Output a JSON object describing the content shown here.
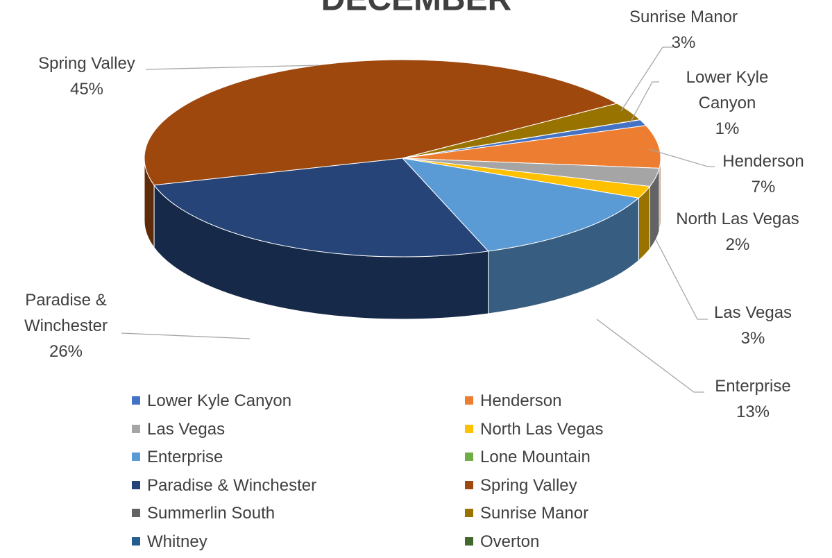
{
  "chart_data": {
    "type": "pie",
    "title": "DECEMBER",
    "categories": [
      "Lower Kyle Canyon",
      "Henderson",
      "Las Vegas",
      "North Las Vegas",
      "Enterprise",
      "Lone Mountain",
      "Paradise & Winchester",
      "Spring Valley",
      "Summerlin South",
      "Sunrise Manor",
      "Whitney",
      "Overton"
    ],
    "values": [
      1,
      7,
      3,
      2,
      13,
      0,
      26,
      45,
      0,
      3,
      0,
      0
    ],
    "value_labels": [
      "1%",
      "7%",
      "3%",
      "2%",
      "13%",
      null,
      "26%",
      "45%",
      null,
      "3%",
      null,
      null
    ],
    "colors": [
      "#4472c4",
      "#ed7d31",
      "#a5a5a5",
      "#ffc000",
      "#5b9bd5",
      "#70ad47",
      "#264478",
      "#9e480e",
      "#636363",
      "#997300",
      "#255e91",
      "#43682b"
    ],
    "legend": "bottom"
  }
}
